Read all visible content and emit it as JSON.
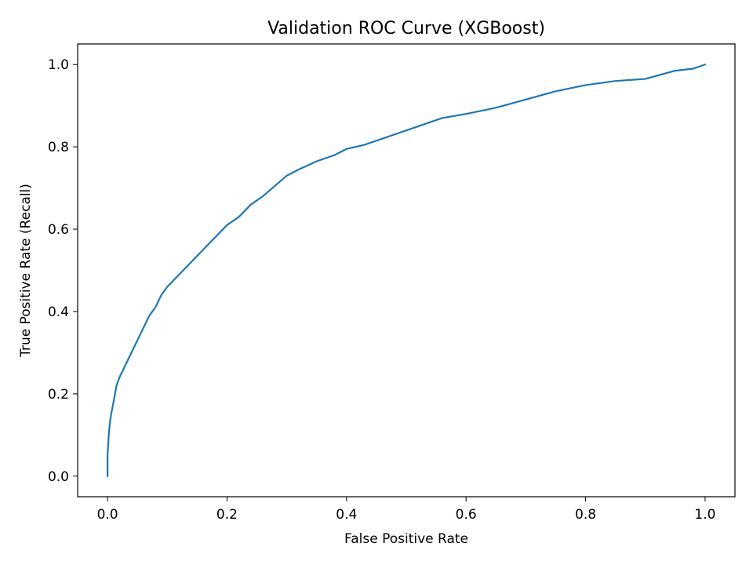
{
  "chart_data": {
    "type": "line",
    "title": "Validation ROC Curve (XGBoost)",
    "xlabel": "False Positive Rate",
    "ylabel": "True Positive Rate (Recall)",
    "xlim": [
      -0.05,
      1.05
    ],
    "ylim": [
      -0.05,
      1.05
    ],
    "xticks": [
      "0.0",
      "0.2",
      "0.4",
      "0.6",
      "0.8",
      "1.0"
    ],
    "yticks": [
      "0.0",
      "0.2",
      "0.4",
      "0.6",
      "0.8",
      "1.0"
    ],
    "grid": false,
    "series": [
      {
        "color": "#1f77b4",
        "x": [
          0.0,
          0.0,
          0.002,
          0.004,
          0.006,
          0.01,
          0.015,
          0.02,
          0.03,
          0.04,
          0.05,
          0.06,
          0.07,
          0.08,
          0.09,
          0.1,
          0.12,
          0.14,
          0.16,
          0.18,
          0.2,
          0.22,
          0.24,
          0.26,
          0.28,
          0.3,
          0.32,
          0.35,
          0.38,
          0.4,
          0.43,
          0.46,
          0.5,
          0.53,
          0.56,
          0.6,
          0.65,
          0.7,
          0.75,
          0.8,
          0.85,
          0.9,
          0.95,
          0.98,
          1.0
        ],
        "y": [
          0.0,
          0.05,
          0.1,
          0.13,
          0.15,
          0.18,
          0.22,
          0.24,
          0.27,
          0.3,
          0.33,
          0.36,
          0.39,
          0.41,
          0.44,
          0.46,
          0.49,
          0.52,
          0.55,
          0.58,
          0.61,
          0.63,
          0.66,
          0.68,
          0.705,
          0.73,
          0.745,
          0.765,
          0.78,
          0.795,
          0.805,
          0.82,
          0.84,
          0.855,
          0.87,
          0.88,
          0.895,
          0.915,
          0.935,
          0.95,
          0.96,
          0.965,
          0.985,
          0.99,
          1.0
        ]
      }
    ]
  }
}
